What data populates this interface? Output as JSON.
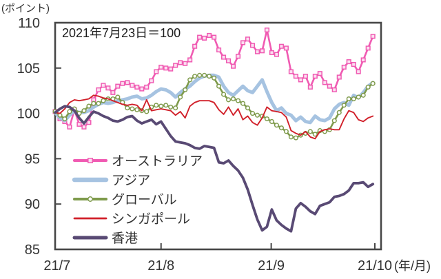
{
  "chart_data": {
    "type": "line",
    "annotation": "2021年7月23日＝100",
    "y_axis_unit": "(ポイント)",
    "x_axis_unit": "(年/月)",
    "ylim": [
      85,
      110
    ],
    "y_ticks": [
      110,
      105,
      100,
      95,
      90,
      85
    ],
    "x_ticks": [
      {
        "label": "21/7",
        "pos": 0.6,
        "tick": false
      },
      {
        "label": "21/8",
        "pos": 32.5,
        "tick": true
      },
      {
        "label": "21/9",
        "pos": 66.3,
        "tick": true
      },
      {
        "label": "21/10",
        "pos": 98.1,
        "tick": true
      }
    ],
    "x_span_pct": 97.5,
    "grid": false,
    "legend_position": "inside-lower-left",
    "axis_color": "#474747",
    "series": [
      {
        "name": "オーストラリア",
        "color": "#f05ab2",
        "marker": "square",
        "marker_fill": "#fbdff0",
        "line_width": 2.6,
        "legend_line_width": 4,
        "values": [
          100.2,
          99.4,
          99.1,
          98.5,
          100.4,
          98.8,
          98.5,
          99.0,
          101.5,
          102.6,
          103.1,
          102.8,
          102.3,
          103.0,
          103.3,
          103.4,
          103.1,
          102.9,
          102.7,
          102.9,
          103.6,
          104.6,
          105.1,
          105.0,
          104.9,
          105.3,
          105.6,
          105.5,
          105.9,
          107.4,
          108.4,
          108.3,
          108.6,
          108.4,
          107.0,
          106.2,
          105.8,
          105.2,
          106.3,
          107.8,
          108.2,
          107.5,
          106.8,
          106.9,
          109.2,
          106.7,
          106.5,
          107.4,
          107.2,
          104.6,
          104.1,
          103.7,
          104.1,
          102.9,
          104.1,
          104.4,
          103.4,
          103.0,
          102.6,
          104.0,
          105.1,
          105.7,
          105.4,
          104.6,
          105.9,
          107.2,
          108.5
        ]
      },
      {
        "name": "アジア",
        "color": "#a6c3e1",
        "marker": "none",
        "marker_fill": "#ffffff",
        "line_width": 5,
        "legend_line_width": 6.5,
        "values": [
          100.1,
          99.5,
          99.2,
          99.8,
          100.3,
          100.1,
          100.1,
          100.3,
          100.7,
          101.0,
          101.2,
          101.1,
          101.2,
          101.4,
          101.5,
          101.6,
          101.8,
          101.9,
          101.6,
          101.7,
          102.0,
          102.4,
          102.7,
          102.6,
          102.3,
          101.8,
          102.3,
          102.7,
          103.0,
          103.5,
          103.9,
          104.1,
          104.2,
          104.2,
          104.0,
          103.0,
          102.3,
          102.0,
          102.5,
          103.0,
          102.5,
          102.3,
          103.0,
          103.7,
          102.4,
          101.2,
          100.3,
          100.6,
          100.0,
          99.8,
          99.2,
          99.6,
          99.1,
          99.0,
          99.7,
          99.3,
          99.2,
          99.5,
          100.5,
          101.0,
          101.2,
          100.9,
          102.0,
          101.7,
          102.3,
          103.0,
          103.4
        ]
      },
      {
        "name": "グローバル",
        "color": "#7e9a4b",
        "marker": "circle",
        "marker_fill": "#ffffff",
        "line_width": 2.6,
        "legend_line_width": 4,
        "values": [
          100.2,
          99.8,
          99.4,
          100.2,
          100.5,
          100.0,
          100.3,
          100.8,
          101.1,
          101.1,
          101.4,
          101.6,
          101.6,
          101.8,
          101.2,
          100.6,
          100.5,
          100.4,
          100.3,
          100.2,
          100.7,
          100.9,
          100.8,
          100.9,
          100.7,
          100.6,
          101.8,
          102.6,
          103.7,
          104.1,
          104.2,
          104.2,
          104.1,
          103.9,
          103.0,
          102.1,
          101.5,
          101.6,
          101.4,
          101.1,
          100.6,
          100.0,
          99.8,
          99.7,
          99.4,
          99.1,
          98.7,
          98.4,
          98.0,
          97.4,
          97.3,
          97.6,
          97.8,
          98.0,
          97.7,
          98.1,
          98.0,
          98.2,
          99.2,
          100.1,
          100.9,
          101.6,
          101.6,
          101.8,
          102.0,
          102.9,
          103.3
        ]
      },
      {
        "name": "シンガポール",
        "color": "#d1202a",
        "marker": "none",
        "marker_fill": "#ffffff",
        "line_width": 1.9,
        "legend_line_width": 2.8,
        "values": [
          100.1,
          100.0,
          100.5,
          101.2,
          101.5,
          101.4,
          101.5,
          101.6,
          102.0,
          101.9,
          101.7,
          101.6,
          101.4,
          101.2,
          101.0,
          100.9,
          101.0,
          100.9,
          100.3,
          101.5,
          100.3,
          100.4,
          100.5,
          100.4,
          100.3,
          99.8,
          100.2,
          99.5,
          100.8,
          101.2,
          101.4,
          101.4,
          101.4,
          101.2,
          100.4,
          99.9,
          100.7,
          99.8,
          100.5,
          99.3,
          99.7,
          99.0,
          98.7,
          99.5,
          100.7,
          100.3,
          100.2,
          100.1,
          99.6,
          98.1,
          97.8,
          97.6,
          98.0,
          97.4,
          97.2,
          98.0,
          98.2,
          98.3,
          98.2,
          98.2,
          99.4,
          100.3,
          100.1,
          99.3,
          99.1,
          99.5,
          99.7
        ]
      },
      {
        "name": "香港",
        "color": "#594a74",
        "marker": "none",
        "marker_fill": "#ffffff",
        "line_width": 3.8,
        "legend_line_width": 5,
        "values": [
          100.1,
          100.5,
          100.8,
          100.7,
          100.3,
          99.5,
          98.9,
          99.6,
          100.2,
          100.0,
          99.7,
          99.5,
          99.2,
          99.1,
          99.3,
          99.6,
          99.7,
          99.2,
          98.9,
          99.1,
          99.3,
          98.8,
          99.1,
          98.3,
          97.5,
          96.9,
          96.8,
          96.7,
          96.5,
          96.2,
          96.1,
          96.4,
          96.3,
          96.2,
          94.6,
          94.5,
          94.8,
          94.2,
          93.7,
          92.9,
          91.6,
          89.9,
          88.3,
          87.1,
          87.5,
          89.4,
          88.2,
          87.7,
          87.3,
          87.0,
          89.5,
          90.1,
          89.7,
          89.2,
          88.9,
          89.8,
          90.0,
          90.2,
          90.8,
          90.9,
          91.1,
          91.5,
          92.3,
          92.3,
          92.4,
          91.9,
          92.2
        ]
      }
    ]
  }
}
